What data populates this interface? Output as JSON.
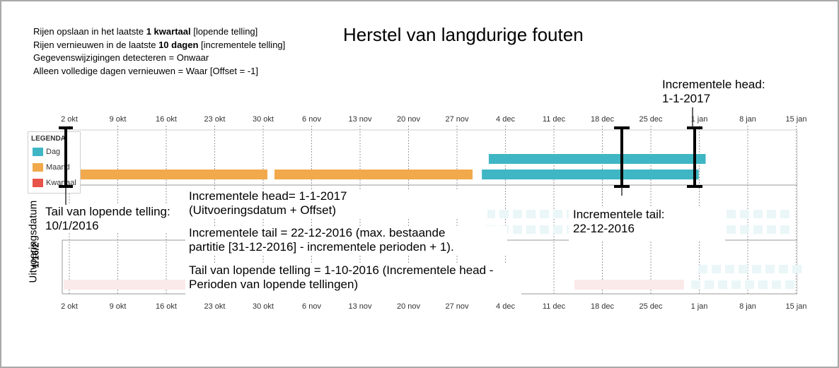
{
  "title": "Herstel van langdurige fouten",
  "settings": {
    "line1_pre": "Rijen opslaan in het laatste ",
    "line1_bold": "1 kwartaal",
    "line1_post": " [lopende telling]",
    "line2_pre": "Rijen vernieuwen in de laatste ",
    "line2_bold": "10 dagen",
    "line2_post": " [incrementele telling]",
    "line3": "Gegevenswijzigingen detecteren = Onwaar",
    "line4": "Alleen volledige dagen vernieuwen = Waar [Offset = -1]"
  },
  "axis_ticks": [
    "2 okt",
    "9 okt",
    "16 okt",
    "23 okt",
    "30 okt",
    "6 nov",
    "13 nov",
    "20 nov",
    "27 nov",
    "4 dec",
    "11 dec",
    "18 dec",
    "25 dec",
    "1 jan",
    "8 jan",
    "15 jan"
  ],
  "legend": {
    "title": "LEGENDA",
    "items": [
      {
        "label": "Dag",
        "color": "#3fb6c4"
      },
      {
        "label": "Maand",
        "color": "#f2a94b"
      },
      {
        "label": "Kwartaal",
        "color": "#e8534a"
      }
    ]
  },
  "annotations": {
    "inc_head_top": [
      "Incrementele head:",
      "1-1-2017"
    ],
    "tail_rolling": [
      "Tail van lopende telling:",
      "10/1/2016"
    ],
    "inc_head_desc": [
      "Incrementele head= 1-1-2017",
      "(Uitvoeringsdatum + Offset)"
    ],
    "inc_tail_desc": [
      "Incrementele tail = 22-12-2016 (max. bestaande",
      "partitie [31-12-2016] - incrementele perioden + 1)."
    ],
    "tail_rolling_desc": [
      "Tail van lopende telling = 1-10-2016 (Incrementele head -",
      "Perioden van lopende tellingen)"
    ],
    "inc_tail_right": [
      "Incrementele tail:",
      "22-12-2016"
    ]
  },
  "y_axis_label": "Uitvoeringsdatum",
  "run_date_label": "1/16/2",
  "colors": {
    "day": "#3fb6c4",
    "month": "#f2a94b",
    "day_faded": "#eaf6f8",
    "pink_faded": "#fbeaea",
    "grid": "#9a9a9a",
    "marker": "#000000"
  },
  "chart_data": {
    "type": "diagram",
    "time_axis_ticks": [
      "2 okt",
      "9 okt",
      "16 okt",
      "23 okt",
      "30 okt",
      "6 nov",
      "13 nov",
      "20 nov",
      "27 nov",
      "4 dec",
      "11 dec",
      "18 dec",
      "25 dec",
      "1 jan",
      "8 jan",
      "15 jan"
    ],
    "month_partitions": [
      {
        "from": "2016-10-01",
        "to": "2016-10-31"
      },
      {
        "from": "2016-11-01",
        "to": "2016-11-30"
      }
    ],
    "day_partitions_lower_row": {
      "from": "2016-12-01",
      "to": "2016-12-31"
    },
    "day_partitions_upper_row": {
      "from": "2016-12-22",
      "to": "2017-01-01"
    },
    "markers": [
      {
        "name": "Tail van lopende telling",
        "date": "2016-10-01"
      },
      {
        "name": "Incrementele tail",
        "date": "2016-12-22"
      },
      {
        "name": "Incrementele head",
        "date": "2017-01-01"
      }
    ]
  }
}
